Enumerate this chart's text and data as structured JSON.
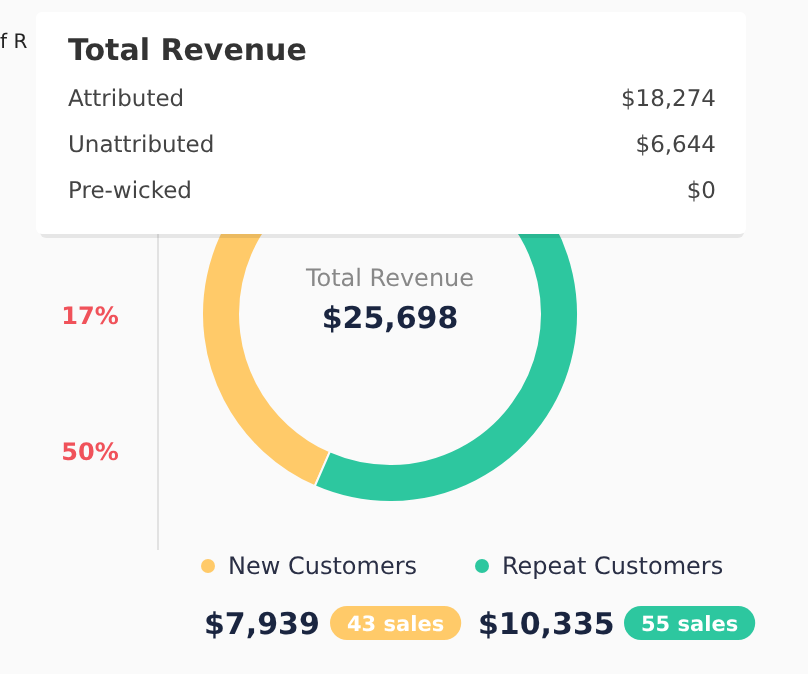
{
  "chart_data": {
    "type": "donut",
    "categories": [
      "New Customers",
      "Repeat Customers"
    ],
    "values": [
      7939,
      10335
    ],
    "colors": [
      "#ffca69",
      "#2dc79f"
    ],
    "value_labels": [
      "$7,939",
      "$10,335"
    ],
    "legend": "bottom",
    "annotations": [
      "f R",
      "17%",
      "50%",
      "Total Revenue",
      "$25,698",
      "Total Revenue",
      "Attributed",
      "$18,274",
      "Unattributed",
      "$6,644",
      "Pre-wicked",
      "$0",
      "43 sales",
      "55 sales"
    ]
  }
}
